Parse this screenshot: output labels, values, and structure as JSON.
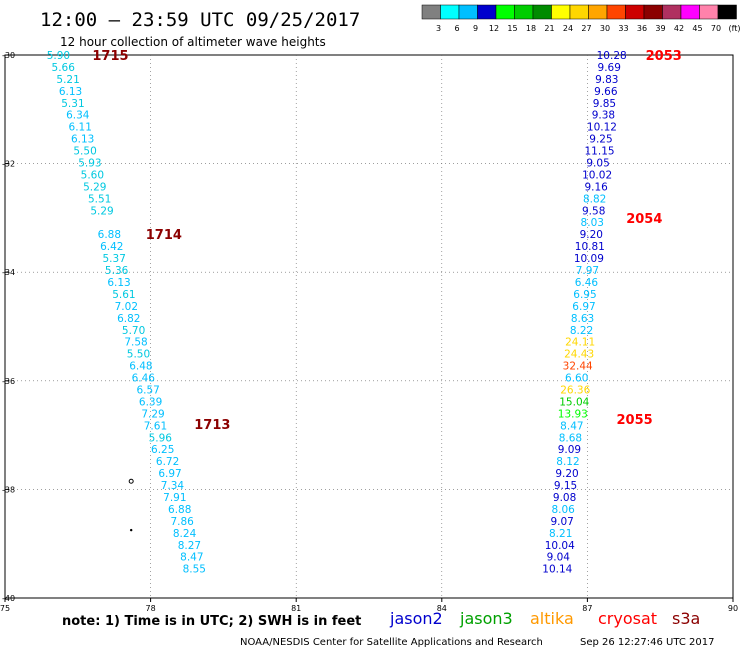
{
  "header": {
    "title": "12:00 — 23:59 UTC 09/25/2017",
    "subtitle": "12 hour collection of altimeter wave heights"
  },
  "colorbar": {
    "labels": [
      "3",
      "6",
      "9",
      "12",
      "15",
      "18",
      "21",
      "24",
      "27",
      "30",
      "33",
      "36",
      "39",
      "42",
      "45",
      "70",
      "(ft)"
    ],
    "colors": [
      "#808080",
      "#00ffff",
      "#00bfff",
      "#0000cd",
      "#00ff00",
      "#00cd00",
      "#008b00",
      "#ffff00",
      "#ffd700",
      "#ffa500",
      "#ff4500",
      "#cd0000",
      "#8b0000",
      "#b03060",
      "#ff00ff",
      "#ff82ab",
      "#000000"
    ]
  },
  "footer": {
    "note": "note:  1) Time is in UTC;  2) SWH is in feet",
    "satellites": [
      {
        "name": "jason2",
        "color": "#0000cd"
      },
      {
        "name": "jason3",
        "color": "#00a000"
      },
      {
        "name": "altika",
        "color": "#ff9900"
      },
      {
        "name": "cryosat",
        "color": "#ff0000"
      },
      {
        "name": "s3a",
        "color": "#8b0000"
      }
    ],
    "credit": "NOAA/NESDIS Center for Satellite Applications and Research",
    "timestamp": "Sep 26 12:27:46 UTC 2017"
  },
  "chart_data": {
    "type": "scatter",
    "title": "12:00 — 23:59 UTC 09/25/2017",
    "xlim": [
      75,
      90
    ],
    "ylim": [
      -40,
      -30
    ],
    "x_ticks": [
      "75",
      "78",
      "81",
      "84",
      "87",
      "90"
    ],
    "y_ticks": [
      "-30",
      "-32",
      "-34",
      "-36",
      "-38",
      "-40"
    ],
    "color_scale": {
      "thresholds": [
        3,
        6,
        9,
        12,
        15,
        18,
        21,
        24,
        27,
        30,
        33,
        36,
        39,
        42,
        45,
        70
      ],
      "colors": [
        "#808080",
        "#00ffff",
        "#00bfff",
        "#0000cd",
        "#00ff00",
        "#00cd00",
        "#008b00",
        "#ffff00",
        "#ffd700",
        "#ffa500",
        "#ff4500",
        "#cd0000",
        "#8b0000",
        "#b03060",
        "#ff00ff",
        "#ff82ab",
        "#000000"
      ]
    },
    "series": [
      {
        "satellite": "s3a",
        "color": "#8b0000",
        "passes": [
          {
            "time": "1715",
            "x": 76.8,
            "y": -30.0
          },
          {
            "time": "1714",
            "x": 77.9,
            "y": -33.3
          },
          {
            "time": "1713",
            "x": 78.9,
            "y": -36.8
          }
        ],
        "points": [
          {
            "x": 76.1,
            "y": -30.0,
            "swh": "5.90"
          },
          {
            "x": 76.2,
            "y": -30.22,
            "swh": "5.66"
          },
          {
            "x": 76.3,
            "y": -30.44,
            "swh": "5.21"
          },
          {
            "x": 76.35,
            "y": -30.66,
            "swh": "6.13"
          },
          {
            "x": 76.4,
            "y": -30.88,
            "swh": "5.31"
          },
          {
            "x": 76.5,
            "y": -31.1,
            "swh": "6.34"
          },
          {
            "x": 76.55,
            "y": -31.32,
            "swh": "6.11"
          },
          {
            "x": 76.6,
            "y": -31.54,
            "swh": "6.13"
          },
          {
            "x": 76.65,
            "y": -31.76,
            "swh": "5.50"
          },
          {
            "x": 76.75,
            "y": -31.98,
            "swh": "5.93"
          },
          {
            "x": 76.8,
            "y": -32.2,
            "swh": "5.60"
          },
          {
            "x": 76.85,
            "y": -32.42,
            "swh": "5.29"
          },
          {
            "x": 76.95,
            "y": -32.64,
            "swh": "5.51"
          },
          {
            "x": 77.0,
            "y": -32.86,
            "swh": "5.29"
          },
          {
            "x": 77.15,
            "y": -33.3,
            "swh": "6.88"
          },
          {
            "x": 77.2,
            "y": -33.52,
            "swh": "6.42"
          },
          {
            "x": 77.25,
            "y": -33.74,
            "swh": "5.37"
          },
          {
            "x": 77.3,
            "y": -33.96,
            "swh": "5.36"
          },
          {
            "x": 77.35,
            "y": -34.18,
            "swh": "6.13"
          },
          {
            "x": 77.45,
            "y": -34.4,
            "swh": "5.61"
          },
          {
            "x": 77.5,
            "y": -34.62,
            "swh": "7.02"
          },
          {
            "x": 77.55,
            "y": -34.84,
            "swh": "6.82"
          },
          {
            "x": 77.65,
            "y": -35.06,
            "swh": "5.70"
          },
          {
            "x": 77.7,
            "y": -35.28,
            "swh": "7.58"
          },
          {
            "x": 77.75,
            "y": -35.5,
            "swh": "5.50"
          },
          {
            "x": 77.8,
            "y": -35.72,
            "swh": "6.48"
          },
          {
            "x": 77.85,
            "y": -35.94,
            "swh": "6.46"
          },
          {
            "x": 77.95,
            "y": -36.16,
            "swh": "6.57"
          },
          {
            "x": 78.0,
            "y": -36.38,
            "swh": "6.39"
          },
          {
            "x": 78.05,
            "y": -36.6,
            "swh": "7.29"
          },
          {
            "x": 78.1,
            "y": -36.82,
            "swh": "7.61"
          },
          {
            "x": 78.2,
            "y": -37.04,
            "swh": "5.96"
          },
          {
            "x": 78.25,
            "y": -37.26,
            "swh": "6.25"
          },
          {
            "x": 78.35,
            "y": -37.48,
            "swh": "6.72"
          },
          {
            "x": 78.4,
            "y": -37.7,
            "swh": "6.97"
          },
          {
            "x": 78.45,
            "y": -37.92,
            "swh": "7.34"
          },
          {
            "x": 78.5,
            "y": -38.14,
            "swh": "7.91"
          },
          {
            "x": 78.6,
            "y": -38.36,
            "swh": "6.88"
          },
          {
            "x": 78.65,
            "y": -38.58,
            "swh": "7.86"
          },
          {
            "x": 78.7,
            "y": -38.8,
            "swh": "8.24"
          },
          {
            "x": 78.8,
            "y": -39.02,
            "swh": "8.27"
          },
          {
            "x": 78.85,
            "y": -39.24,
            "swh": "8.47"
          },
          {
            "x": 78.9,
            "y": -39.46,
            "swh": "8.55"
          }
        ]
      },
      {
        "satellite": "cryosat",
        "color": "#ff0000",
        "passes": [
          {
            "time": "2053",
            "x": 88.2,
            "y": -30.0
          },
          {
            "time": "2054",
            "x": 87.8,
            "y": -33.0
          },
          {
            "time": "2055",
            "x": 87.6,
            "y": -36.7
          }
        ],
        "points": [
          {
            "x": 87.5,
            "y": -30.0,
            "swh": "10.28"
          },
          {
            "x": 87.45,
            "y": -30.22,
            "swh": "9.69"
          },
          {
            "x": 87.4,
            "y": -30.44,
            "swh": "9.83"
          },
          {
            "x": 87.38,
            "y": -30.66,
            "swh": "9.66"
          },
          {
            "x": 87.35,
            "y": -30.88,
            "swh": "9.85"
          },
          {
            "x": 87.33,
            "y": -31.1,
            "swh": "9.38"
          },
          {
            "x": 87.3,
            "y": -31.32,
            "swh": "10.12"
          },
          {
            "x": 87.28,
            "y": -31.54,
            "swh": "9.25"
          },
          {
            "x": 87.25,
            "y": -31.76,
            "swh": "11.15"
          },
          {
            "x": 87.22,
            "y": -31.98,
            "swh": "9.05"
          },
          {
            "x": 87.2,
            "y": -32.2,
            "swh": "10.02"
          },
          {
            "x": 87.18,
            "y": -32.42,
            "swh": "9.16"
          },
          {
            "x": 87.15,
            "y": -32.64,
            "swh": "8.82"
          },
          {
            "x": 87.13,
            "y": -32.86,
            "swh": "9.58"
          },
          {
            "x": 87.1,
            "y": -33.08,
            "swh": "8.03"
          },
          {
            "x": 87.08,
            "y": -33.3,
            "swh": "9.20"
          },
          {
            "x": 87.05,
            "y": -33.52,
            "swh": "10.81"
          },
          {
            "x": 87.03,
            "y": -33.74,
            "swh": "10.09"
          },
          {
            "x": 87.0,
            "y": -33.96,
            "swh": "7.97"
          },
          {
            "x": 86.98,
            "y": -34.18,
            "swh": "6.46"
          },
          {
            "x": 86.95,
            "y": -34.4,
            "swh": "6.95"
          },
          {
            "x": 86.93,
            "y": -34.62,
            "swh": "6.97"
          },
          {
            "x": 86.9,
            "y": -34.84,
            "swh": "8.63"
          },
          {
            "x": 86.88,
            "y": -35.06,
            "swh": "8.22"
          },
          {
            "x": 86.85,
            "y": -35.28,
            "swh": "24.11"
          },
          {
            "x": 86.83,
            "y": -35.5,
            "swh": "24.43"
          },
          {
            "x": 86.8,
            "y": -35.72,
            "swh": "32.44"
          },
          {
            "x": 86.78,
            "y": -35.94,
            "swh": "6.60"
          },
          {
            "x": 86.75,
            "y": -36.16,
            "swh": "26.36"
          },
          {
            "x": 86.73,
            "y": -36.38,
            "swh": "15.04"
          },
          {
            "x": 86.7,
            "y": -36.6,
            "swh": "13.93"
          },
          {
            "x": 86.68,
            "y": -36.82,
            "swh": "8.47"
          },
          {
            "x": 86.65,
            "y": -37.04,
            "swh": "8.68"
          },
          {
            "x": 86.63,
            "y": -37.26,
            "swh": "9.09"
          },
          {
            "x": 86.6,
            "y": -37.48,
            "swh": "8.12"
          },
          {
            "x": 86.58,
            "y": -37.7,
            "swh": "9.20"
          },
          {
            "x": 86.55,
            "y": -37.92,
            "swh": "9.15"
          },
          {
            "x": 86.53,
            "y": -38.14,
            "swh": "9.08"
          },
          {
            "x": 86.5,
            "y": -38.36,
            "swh": "8.06"
          },
          {
            "x": 86.48,
            "y": -38.58,
            "swh": "9.07"
          },
          {
            "x": 86.45,
            "y": -38.8,
            "swh": "8.21"
          },
          {
            "x": 86.43,
            "y": -39.02,
            "swh": "10.04"
          },
          {
            "x": 86.4,
            "y": -39.24,
            "swh": "9.04"
          },
          {
            "x": 86.38,
            "y": -39.46,
            "swh": "10.14"
          }
        ]
      }
    ],
    "markers": [
      {
        "x": 77.6,
        "y": -37.85,
        "shape": "circle"
      },
      {
        "x": 77.6,
        "y": -38.75,
        "shape": "dot"
      }
    ]
  }
}
